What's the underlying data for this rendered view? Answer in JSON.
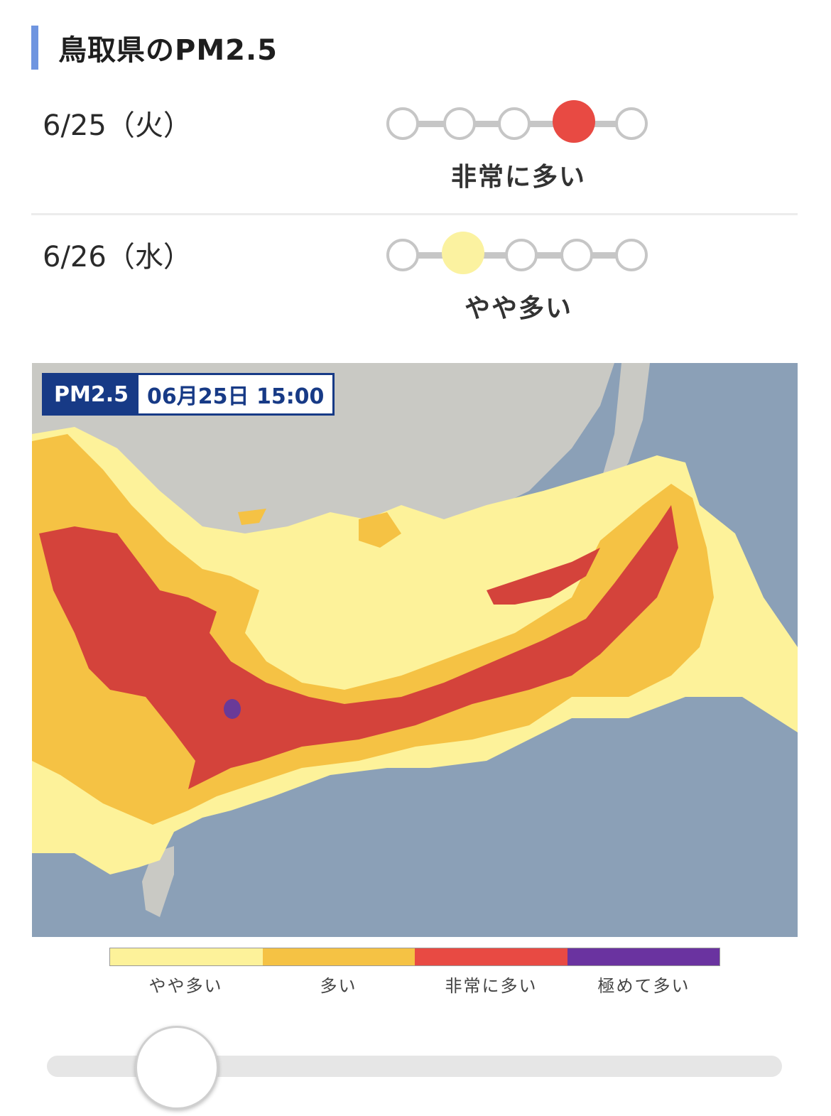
{
  "header": {
    "title": "鳥取県のPM2.5"
  },
  "forecast": [
    {
      "date": "6/25（火）",
      "level_index": 3,
      "level_label": "非常に多い",
      "color": "#e84a43"
    },
    {
      "date": "6/26（水）",
      "level_index": 1,
      "level_label": "やや多い",
      "color": "#fbf2a0"
    }
  ],
  "map": {
    "badge_name": "PM2.5",
    "badge_time": "06月25日 15:00",
    "colors": {
      "sea": "#8ba0b7",
      "land": "#c9c9c4",
      "light": "#fdf29a",
      "medium": "#f5c244",
      "high": "#d4433b",
      "extreme": "#6a3a98"
    }
  },
  "legend": [
    {
      "label": "やや多い",
      "color": "#fdf29a"
    },
    {
      "label": "多い",
      "color": "#f5c244"
    },
    {
      "label": "非常に多い",
      "color": "#e84a43"
    },
    {
      "label": "極めて多い",
      "color": "#6a33a0"
    }
  ],
  "slider": {
    "position": 0.12
  }
}
